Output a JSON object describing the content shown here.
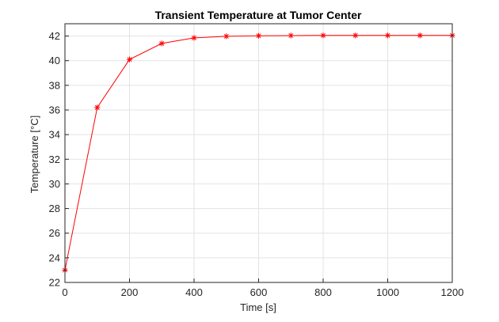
{
  "chart_data": {
    "type": "line",
    "title": "Transient Temperature at Tumor Center",
    "xlabel": "Time [s]",
    "ylabel": "Temperature [°C]",
    "xlim": [
      0,
      1200
    ],
    "ylim": [
      22,
      43
    ],
    "xticks": [
      0,
      200,
      400,
      600,
      800,
      1000,
      1200
    ],
    "yticks": [
      22,
      24,
      26,
      28,
      30,
      32,
      34,
      36,
      38,
      40,
      42
    ],
    "grid": true,
    "legend": "none",
    "marker": "asterisk",
    "line_color": "#ff0000",
    "series": [
      {
        "x": [
          0,
          100,
          200,
          300,
          400,
          500,
          600,
          700,
          800,
          900,
          1000,
          1100,
          1200
        ],
        "y": [
          23.0,
          36.2,
          40.1,
          41.4,
          41.85,
          41.98,
          42.02,
          42.04,
          42.05,
          42.05,
          42.05,
          42.05,
          42.05
        ]
      }
    ]
  }
}
